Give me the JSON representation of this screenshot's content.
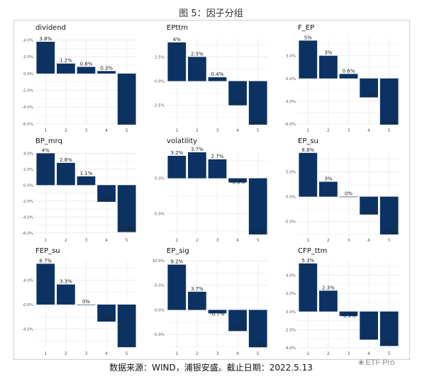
{
  "figure": {
    "title": "图 5：因子分组",
    "source": "数据来源：WIND，浦银安盛。截止日期：2022.5.13",
    "watermark": "ETF Pro",
    "watermark_icon": "wechat-icon",
    "bar_color": "#0c3263",
    "grid_color": "#ebebeb"
  },
  "chart_data": [
    {
      "type": "bar",
      "title": "dividend",
      "categories": [
        "1",
        "2",
        "3",
        "4",
        "5"
      ],
      "values": [
        3.8,
        1.2,
        0.8,
        0.3,
        -6.1
      ],
      "value_labels": [
        "3.8%",
        "1.2%",
        "0.8%",
        "0.3%",
        "-6.1%"
      ],
      "ylim": [
        -6.1,
        4.3
      ],
      "yticks": [
        4.0,
        2.0,
        0.0,
        -2.0,
        -4.0,
        -6.0
      ],
      "ytick_labels": [
        "4.0%",
        "2.0%",
        "0.0%",
        "-2.0%",
        "-4.0%",
        "-6.0%"
      ],
      "grid": true
    },
    {
      "type": "bar",
      "title": "EPttm",
      "categories": [
        "1",
        "2",
        "3",
        "4",
        "5"
      ],
      "values": [
        4.0,
        2.5,
        0.4,
        -2.5,
        -4.5
      ],
      "value_labels": [
        "4%",
        "2.5%",
        "0.4%",
        "-2.5%",
        "-4.5%"
      ],
      "ylim": [
        -4.5,
        4.5
      ],
      "yticks": [
        2.5,
        0.0,
        -2.5
      ],
      "ytick_labels": [
        "2.5%",
        "0.0%",
        "-2.5%"
      ],
      "grid": true
    },
    {
      "type": "bar",
      "title": "F_EP",
      "categories": [
        "1",
        "2",
        "3",
        "4",
        "5"
      ],
      "values": [
        5.0,
        3.0,
        0.6,
        -2.5,
        -6.1
      ],
      "value_labels": [
        "5%",
        "3%",
        "0.6%",
        "-2.5%",
        "-6.1%"
      ],
      "ylim": [
        -6.1,
        5.4
      ],
      "yticks": [
        3.0,
        0.0,
        -3.0,
        -6.0
      ],
      "ytick_labels": [
        "3.0%",
        "0.0%",
        "-3.0%",
        "-6.0%"
      ],
      "grid": true
    },
    {
      "type": "bar",
      "title": "BP_mrq",
      "categories": [
        "1",
        "2",
        "3",
        "4",
        "5"
      ],
      "values": [
        4.0,
        2.8,
        1.1,
        -2.1,
        -5.9
      ],
      "value_labels": [
        "4%",
        "2.8%",
        "1.1%",
        "-2.1%",
        "-5.9%"
      ],
      "ylim": [
        -6.2,
        4.3
      ],
      "yticks": [
        4.0,
        2.0,
        0.0,
        -2.0,
        -4.0,
        -6.0
      ],
      "ytick_labels": [
        "4.0%",
        "2.0%",
        "0.0%",
        "-2.0%",
        "-4.0%",
        "-6.0%"
      ],
      "grid": true
    },
    {
      "type": "bar",
      "title": "volatility",
      "categories": [
        "1",
        "2",
        "3",
        "4",
        "5"
      ],
      "values": [
        3.2,
        3.7,
        2.7,
        -0.6,
        -8.0
      ],
      "value_labels": [
        "3.2%",
        "3.7%",
        "2.7%",
        "-0.6%",
        "-8.0%"
      ],
      "ylim": [
        -8.0,
        3.9
      ],
      "yticks": [
        0.0,
        -5.0
      ],
      "ytick_labels": [
        "0.0%",
        "-5.0%"
      ],
      "grid": true
    },
    {
      "type": "bar",
      "title": "EP_su",
      "categories": [
        "1",
        "2",
        "3",
        "4",
        "5"
      ],
      "values": [
        8.8,
        3.0,
        0.0,
        -3.6,
        -7.6
      ],
      "value_labels": [
        "8.8%",
        "3%",
        "0%",
        "-3.6%",
        "-7.6%"
      ],
      "ylim": [
        -7.6,
        9.2
      ],
      "yticks": [
        5.0,
        0.0,
        -5.0
      ],
      "ytick_labels": [
        "5.0%",
        "0.0%",
        "-5.0%"
      ],
      "grid": true
    },
    {
      "type": "bar",
      "title": "FEP_su",
      "categories": [
        "1",
        "2",
        "3",
        "4",
        "5"
      ],
      "values": [
        6.7,
        3.3,
        0.0,
        -2.8,
        -7.0
      ],
      "value_labels": [
        "6.7%",
        "3.3%",
        "0%",
        "-2.8%",
        "-7%"
      ],
      "ylim": [
        -7.1,
        7.2
      ],
      "yticks": [
        4.0,
        0.0,
        -4.0
      ],
      "ytick_labels": [
        "4.0%",
        "0.0%",
        "-4.0%"
      ],
      "grid": true
    },
    {
      "type": "bar",
      "title": "EP_sig",
      "categories": [
        "1",
        "2",
        "3",
        "4",
        "5"
      ],
      "values": [
        9.2,
        3.7,
        -0.7,
        -4.3,
        -7.6
      ],
      "value_labels": [
        "9.2%",
        "3.7%",
        "-0.7%",
        "-4.3%",
        "-7.6%"
      ],
      "ylim": [
        -7.7,
        10.0
      ],
      "yticks": [
        10.0,
        5.0,
        0.0,
        -5.0
      ],
      "ytick_labels": [
        "10.0%",
        "5.0%",
        "0.0%",
        "-5.0%"
      ],
      "grid": true
    },
    {
      "type": "bar",
      "title": "CFP_ttm",
      "categories": [
        "1",
        "2",
        "3",
        "4",
        "5"
      ],
      "values": [
        5.3,
        2.3,
        -0.5,
        -3.1,
        -3.8
      ],
      "value_labels": [
        "5.3%",
        "2.3%",
        "-0.5%",
        "-3.1%",
        "-3.8%"
      ],
      "ylim": [
        -4.0,
        5.6
      ],
      "yticks": [
        4.0,
        2.0,
        0.0,
        -2.0,
        -4.0
      ],
      "ytick_labels": [
        "4.0%",
        "2.0%",
        "0.0%",
        "-2.0%",
        "-4.0%"
      ],
      "grid": true
    }
  ]
}
